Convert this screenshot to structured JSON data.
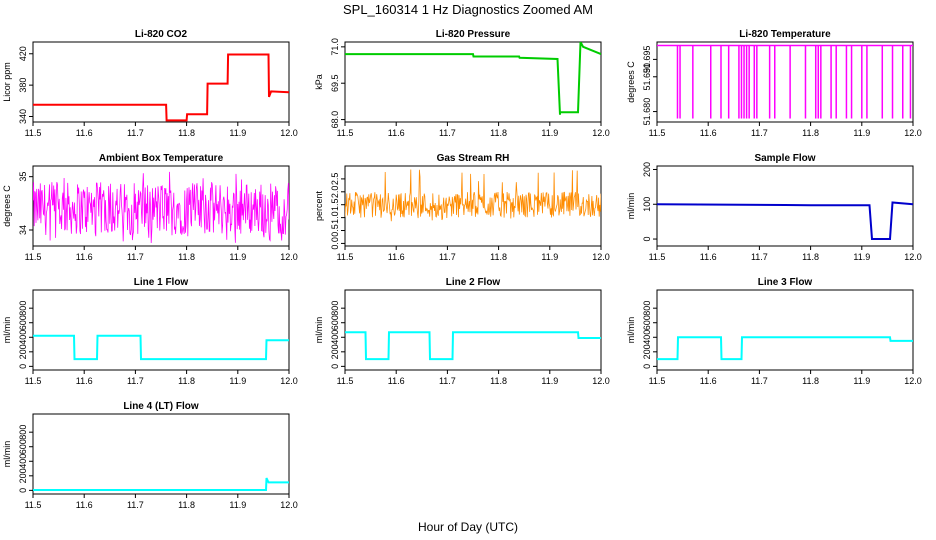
{
  "figure": {
    "title": "SPL_160314  1 Hz Diagnostics Zoomed AM",
    "xlabel": "Hour of Day (UTC)"
  },
  "chart_data": [
    {
      "type": "line",
      "title": "Li-820 CO2",
      "ylabel": "Licor ppm",
      "color": "#ff0000",
      "xlim": [
        11.5,
        12.0
      ],
      "ylim": [
        333,
        435
      ],
      "yticks": [
        340,
        380,
        420
      ],
      "xticks": [
        11.5,
        11.6,
        11.7,
        11.8,
        11.9,
        12.0
      ],
      "series": [
        {
          "x": [
            11.5,
            11.76,
            11.761,
            11.8,
            11.801,
            11.84,
            11.841,
            11.88,
            11.881,
            11.96,
            11.961,
            11.965,
            12.0
          ],
          "y": [
            355,
            355,
            335,
            335,
            343,
            343,
            382,
            382,
            419,
            419,
            365,
            372,
            371
          ]
        }
      ]
    },
    {
      "type": "line",
      "title": "Li-820 Pressure",
      "ylabel": "kPa",
      "color": "#00cc00",
      "xlim": [
        11.5,
        12.0
      ],
      "ylim": [
        67.9,
        71.2
      ],
      "yticks": [
        68.0,
        69.5,
        71.0
      ],
      "xticks": [
        11.5,
        11.6,
        11.7,
        11.8,
        11.9,
        12.0
      ],
      "series": [
        {
          "x": [
            11.5,
            11.75,
            11.751,
            11.84,
            11.841,
            11.915,
            11.92,
            11.92,
            11.955,
            11.96,
            11.965,
            12.0
          ],
          "y": [
            70.7,
            70.7,
            70.6,
            70.6,
            70.55,
            70.5,
            68.2,
            68.3,
            68.3,
            71.2,
            71.0,
            70.7
          ]
        }
      ]
    },
    {
      "type": "line",
      "title": "Li-820 Temperature",
      "ylabel": "degrees C",
      "color": "#ff00ff",
      "xlim": [
        11.5,
        12.0
      ],
      "ylim": [
        51.677,
        51.7
      ],
      "yticks": [
        51.68,
        51.69,
        51.695
      ],
      "xticks": [
        11.5,
        11.6,
        11.7,
        11.8,
        11.9,
        12.0
      ],
      "baseline": 51.699,
      "low": 51.678,
      "drops": [
        11.54,
        11.545,
        11.57,
        11.605,
        11.625,
        11.64,
        11.66,
        11.665,
        11.67,
        11.675,
        11.68,
        11.69,
        11.695,
        11.72,
        11.73,
        11.76,
        11.79,
        11.81,
        11.815,
        11.82,
        11.84,
        11.85,
        11.87,
        11.88,
        11.9,
        11.91,
        11.94,
        11.96,
        11.98,
        11.995
      ]
    },
    {
      "type": "line",
      "title": "Ambient Box Temperature",
      "ylabel": "degrees C",
      "color": "#ff00ff",
      "xlim": [
        11.5,
        12.0
      ],
      "ylim": [
        33.7,
        35.2
      ],
      "yticks": [
        34.0,
        35.0
      ],
      "xticks": [
        11.5,
        11.6,
        11.7,
        11.8,
        11.9,
        12.0
      ],
      "noise": {
        "center": 34.3,
        "low": 33.9,
        "high": 34.9,
        "spike": 35.1
      }
    },
    {
      "type": "line",
      "title": "Gas Stream RH",
      "ylabel": "percent",
      "color": "#ff8c00",
      "xlim": [
        11.5,
        12.0
      ],
      "ylim": [
        -0.1,
        3.0
      ],
      "yticks": [
        0.0,
        0.5,
        1.0,
        1.5,
        2.0,
        2.5
      ],
      "xticks": [
        11.5,
        11.6,
        11.7,
        11.8,
        11.9,
        12.0
      ],
      "noise": {
        "center": 1.5,
        "low": 1.0,
        "high": 2.0,
        "spike": 2.9
      }
    },
    {
      "type": "line",
      "title": "Sample Flow",
      "ylabel": "ml/min",
      "color": "#0000cc",
      "xlim": [
        11.5,
        12.0
      ],
      "ylim": [
        -20,
        210
      ],
      "yticks": [
        0,
        100,
        200
      ],
      "xticks": [
        11.5,
        11.6,
        11.7,
        11.8,
        11.9,
        12.0
      ],
      "series": [
        {
          "x": [
            11.5,
            11.75,
            11.8,
            11.915,
            11.92,
            11.955,
            11.96,
            12.0
          ],
          "y": [
            100,
            98,
            97,
            97,
            0,
            0,
            105,
            100
          ]
        }
      ]
    },
    {
      "type": "line",
      "title": "Line 1 Flow",
      "ylabel": "ml/min",
      "color": "#00ffff",
      "xlim": [
        11.5,
        12.0
      ],
      "ylim": [
        -50,
        1050
      ],
      "yticks": [
        0,
        200,
        400,
        600,
        800
      ],
      "xticks": [
        11.5,
        11.6,
        11.7,
        11.8,
        11.9,
        12.0
      ],
      "series": [
        {
          "x": [
            11.5,
            11.58,
            11.581,
            11.625,
            11.626,
            11.71,
            11.711,
            11.955,
            11.956,
            12.0
          ],
          "y": [
            420,
            420,
            100,
            100,
            420,
            420,
            100,
            100,
            360,
            360
          ]
        }
      ]
    },
    {
      "type": "line",
      "title": "Line 2 Flow",
      "ylabel": "ml/min",
      "color": "#00ffff",
      "xlim": [
        11.5,
        12.0
      ],
      "ylim": [
        -50,
        1050
      ],
      "yticks": [
        0,
        200,
        400,
        600,
        800
      ],
      "xticks": [
        11.5,
        11.6,
        11.7,
        11.8,
        11.9,
        12.0
      ],
      "series": [
        {
          "x": [
            11.5,
            11.54,
            11.541,
            11.585,
            11.586,
            11.665,
            11.666,
            11.71,
            11.711,
            11.955,
            11.956,
            12.0
          ],
          "y": [
            470,
            470,
            100,
            100,
            470,
            470,
            100,
            100,
            470,
            470,
            390,
            390
          ]
        }
      ]
    },
    {
      "type": "line",
      "title": "Line 3 Flow",
      "ylabel": "ml/min",
      "color": "#00ffff",
      "xlim": [
        11.5,
        12.0
      ],
      "ylim": [
        -50,
        1050
      ],
      "yticks": [
        0,
        200,
        400,
        600,
        800
      ],
      "xticks": [
        11.5,
        11.6,
        11.7,
        11.8,
        11.9,
        12.0
      ],
      "series": [
        {
          "x": [
            11.5,
            11.54,
            11.541,
            11.625,
            11.626,
            11.665,
            11.666,
            11.955,
            11.956,
            12.0
          ],
          "y": [
            100,
            100,
            400,
            400,
            100,
            100,
            400,
            400,
            350,
            350
          ]
        }
      ]
    },
    {
      "type": "line",
      "title": "Line 4 (LT) Flow",
      "ylabel": "ml/min",
      "color": "#00ffff",
      "xlim": [
        11.5,
        12.0
      ],
      "ylim": [
        -50,
        1050
      ],
      "yticks": [
        0,
        200,
        400,
        600,
        800
      ],
      "xticks": [
        11.5,
        11.6,
        11.7,
        11.8,
        11.9,
        12.0
      ],
      "series": [
        {
          "x": [
            11.5,
            11.955,
            11.956,
            11.96,
            12.0
          ],
          "y": [
            5,
            5,
            170,
            110,
            110
          ]
        }
      ]
    }
  ]
}
